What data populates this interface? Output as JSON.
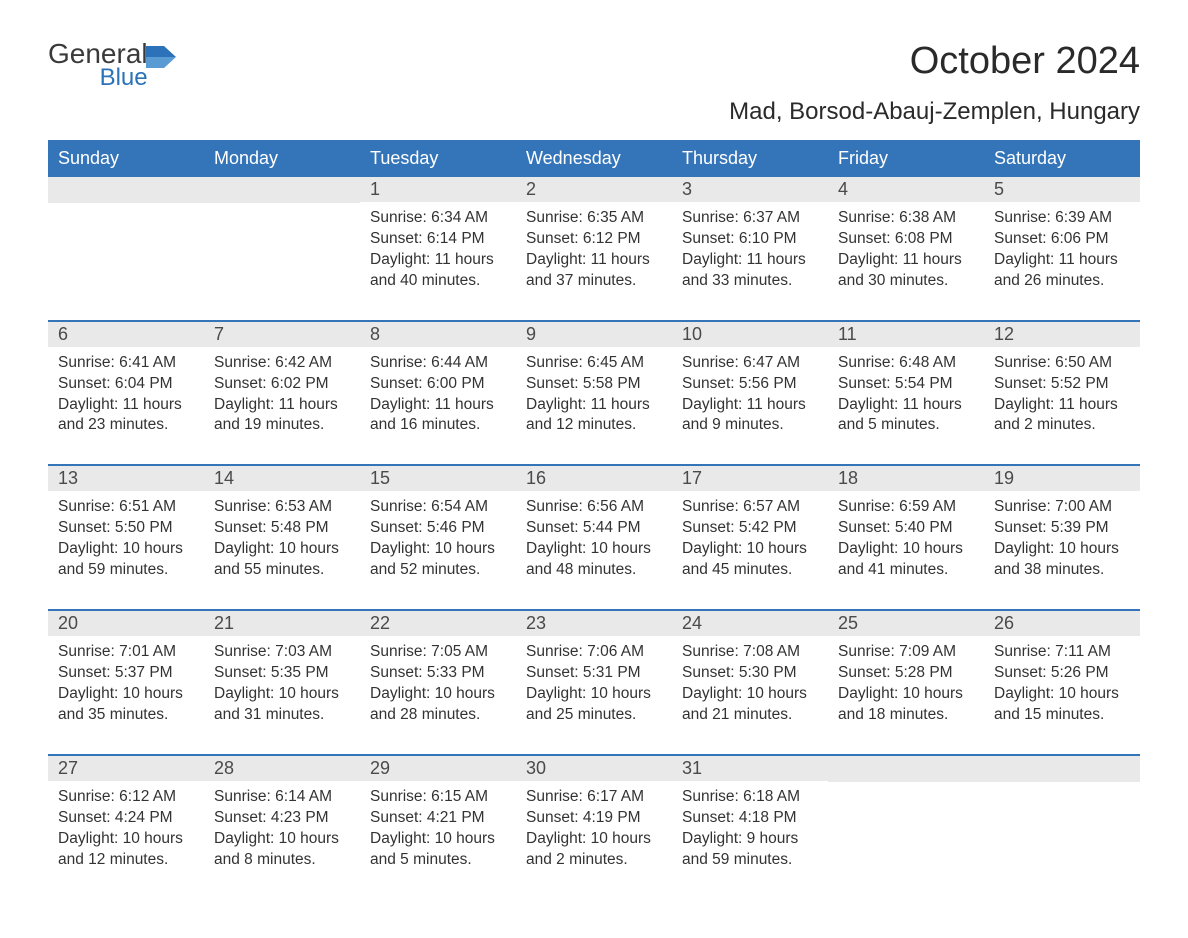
{
  "logo": {
    "general": "General",
    "blue": "Blue"
  },
  "title": "October 2024",
  "location": "Mad, Borsod-Abauj-Zemplen, Hungary",
  "colors": {
    "header_bg": "#3474b8",
    "header_text": "#ffffff",
    "daynum_bg": "#e9e9e9",
    "daynum_text": "#4a4a4a",
    "body_text": "#333333",
    "row_border": "#3474b8",
    "logo_general": "#3a3a3a",
    "logo_blue": "#2b72b8",
    "title_color": "#2a2a2a",
    "page_bg": "#ffffff"
  },
  "typography": {
    "title_fontsize": 38,
    "location_fontsize": 24,
    "header_fontsize": 18,
    "daynum_fontsize": 18,
    "body_fontsize": 15.5,
    "font_family": "Arial"
  },
  "weekdays": [
    "Sunday",
    "Monday",
    "Tuesday",
    "Wednesday",
    "Thursday",
    "Friday",
    "Saturday"
  ],
  "weeks": [
    [
      null,
      null,
      {
        "n": "1",
        "sunrise": "Sunrise: 6:34 AM",
        "sunset": "Sunset: 6:14 PM",
        "d1": "Daylight: 11 hours",
        "d2": "and 40 minutes."
      },
      {
        "n": "2",
        "sunrise": "Sunrise: 6:35 AM",
        "sunset": "Sunset: 6:12 PM",
        "d1": "Daylight: 11 hours",
        "d2": "and 37 minutes."
      },
      {
        "n": "3",
        "sunrise": "Sunrise: 6:37 AM",
        "sunset": "Sunset: 6:10 PM",
        "d1": "Daylight: 11 hours",
        "d2": "and 33 minutes."
      },
      {
        "n": "4",
        "sunrise": "Sunrise: 6:38 AM",
        "sunset": "Sunset: 6:08 PM",
        "d1": "Daylight: 11 hours",
        "d2": "and 30 minutes."
      },
      {
        "n": "5",
        "sunrise": "Sunrise: 6:39 AM",
        "sunset": "Sunset: 6:06 PM",
        "d1": "Daylight: 11 hours",
        "d2": "and 26 minutes."
      }
    ],
    [
      {
        "n": "6",
        "sunrise": "Sunrise: 6:41 AM",
        "sunset": "Sunset: 6:04 PM",
        "d1": "Daylight: 11 hours",
        "d2": "and 23 minutes."
      },
      {
        "n": "7",
        "sunrise": "Sunrise: 6:42 AM",
        "sunset": "Sunset: 6:02 PM",
        "d1": "Daylight: 11 hours",
        "d2": "and 19 minutes."
      },
      {
        "n": "8",
        "sunrise": "Sunrise: 6:44 AM",
        "sunset": "Sunset: 6:00 PM",
        "d1": "Daylight: 11 hours",
        "d2": "and 16 minutes."
      },
      {
        "n": "9",
        "sunrise": "Sunrise: 6:45 AM",
        "sunset": "Sunset: 5:58 PM",
        "d1": "Daylight: 11 hours",
        "d2": "and 12 minutes."
      },
      {
        "n": "10",
        "sunrise": "Sunrise: 6:47 AM",
        "sunset": "Sunset: 5:56 PM",
        "d1": "Daylight: 11 hours",
        "d2": "and 9 minutes."
      },
      {
        "n": "11",
        "sunrise": "Sunrise: 6:48 AM",
        "sunset": "Sunset: 5:54 PM",
        "d1": "Daylight: 11 hours",
        "d2": "and 5 minutes."
      },
      {
        "n": "12",
        "sunrise": "Sunrise: 6:50 AM",
        "sunset": "Sunset: 5:52 PM",
        "d1": "Daylight: 11 hours",
        "d2": "and 2 minutes."
      }
    ],
    [
      {
        "n": "13",
        "sunrise": "Sunrise: 6:51 AM",
        "sunset": "Sunset: 5:50 PM",
        "d1": "Daylight: 10 hours",
        "d2": "and 59 minutes."
      },
      {
        "n": "14",
        "sunrise": "Sunrise: 6:53 AM",
        "sunset": "Sunset: 5:48 PM",
        "d1": "Daylight: 10 hours",
        "d2": "and 55 minutes."
      },
      {
        "n": "15",
        "sunrise": "Sunrise: 6:54 AM",
        "sunset": "Sunset: 5:46 PM",
        "d1": "Daylight: 10 hours",
        "d2": "and 52 minutes."
      },
      {
        "n": "16",
        "sunrise": "Sunrise: 6:56 AM",
        "sunset": "Sunset: 5:44 PM",
        "d1": "Daylight: 10 hours",
        "d2": "and 48 minutes."
      },
      {
        "n": "17",
        "sunrise": "Sunrise: 6:57 AM",
        "sunset": "Sunset: 5:42 PM",
        "d1": "Daylight: 10 hours",
        "d2": "and 45 minutes."
      },
      {
        "n": "18",
        "sunrise": "Sunrise: 6:59 AM",
        "sunset": "Sunset: 5:40 PM",
        "d1": "Daylight: 10 hours",
        "d2": "and 41 minutes."
      },
      {
        "n": "19",
        "sunrise": "Sunrise: 7:00 AM",
        "sunset": "Sunset: 5:39 PM",
        "d1": "Daylight: 10 hours",
        "d2": "and 38 minutes."
      }
    ],
    [
      {
        "n": "20",
        "sunrise": "Sunrise: 7:01 AM",
        "sunset": "Sunset: 5:37 PM",
        "d1": "Daylight: 10 hours",
        "d2": "and 35 minutes."
      },
      {
        "n": "21",
        "sunrise": "Sunrise: 7:03 AM",
        "sunset": "Sunset: 5:35 PM",
        "d1": "Daylight: 10 hours",
        "d2": "and 31 minutes."
      },
      {
        "n": "22",
        "sunrise": "Sunrise: 7:05 AM",
        "sunset": "Sunset: 5:33 PM",
        "d1": "Daylight: 10 hours",
        "d2": "and 28 minutes."
      },
      {
        "n": "23",
        "sunrise": "Sunrise: 7:06 AM",
        "sunset": "Sunset: 5:31 PM",
        "d1": "Daylight: 10 hours",
        "d2": "and 25 minutes."
      },
      {
        "n": "24",
        "sunrise": "Sunrise: 7:08 AM",
        "sunset": "Sunset: 5:30 PM",
        "d1": "Daylight: 10 hours",
        "d2": "and 21 minutes."
      },
      {
        "n": "25",
        "sunrise": "Sunrise: 7:09 AM",
        "sunset": "Sunset: 5:28 PM",
        "d1": "Daylight: 10 hours",
        "d2": "and 18 minutes."
      },
      {
        "n": "26",
        "sunrise": "Sunrise: 7:11 AM",
        "sunset": "Sunset: 5:26 PM",
        "d1": "Daylight: 10 hours",
        "d2": "and 15 minutes."
      }
    ],
    [
      {
        "n": "27",
        "sunrise": "Sunrise: 6:12 AM",
        "sunset": "Sunset: 4:24 PM",
        "d1": "Daylight: 10 hours",
        "d2": "and 12 minutes."
      },
      {
        "n": "28",
        "sunrise": "Sunrise: 6:14 AM",
        "sunset": "Sunset: 4:23 PM",
        "d1": "Daylight: 10 hours",
        "d2": "and 8 minutes."
      },
      {
        "n": "29",
        "sunrise": "Sunrise: 6:15 AM",
        "sunset": "Sunset: 4:21 PM",
        "d1": "Daylight: 10 hours",
        "d2": "and 5 minutes."
      },
      {
        "n": "30",
        "sunrise": "Sunrise: 6:17 AM",
        "sunset": "Sunset: 4:19 PM",
        "d1": "Daylight: 10 hours",
        "d2": "and 2 minutes."
      },
      {
        "n": "31",
        "sunrise": "Sunrise: 6:18 AM",
        "sunset": "Sunset: 4:18 PM",
        "d1": "Daylight: 9 hours",
        "d2": "and 59 minutes."
      },
      null,
      null
    ]
  ]
}
